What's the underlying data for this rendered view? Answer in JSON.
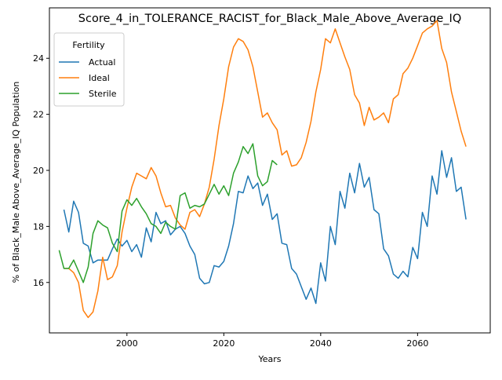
{
  "chart_data": {
    "type": "line",
    "title": "Score_4_in_TOLERANCE_RACIST_for_Black_Male_Above_Average_IQ",
    "xlabel": "Years",
    "ylabel": "% of Black_Male Above_Average_IQ Population",
    "xlim": [
      1984,
      2075
    ],
    "ylim": [
      14.2,
      25.8
    ],
    "xticks": [
      2000,
      2020,
      2040,
      2060
    ],
    "yticks": [
      16,
      18,
      20,
      22,
      24
    ],
    "grid": false,
    "legend": {
      "title": "Fertility",
      "placement": "top-left"
    },
    "series": [
      {
        "name": "Actual",
        "color": "#1f77b4",
        "x": [
          1987,
          1988,
          1989,
          1990,
          1991,
          1992,
          1993,
          1994,
          1995,
          1996,
          1997,
          1998,
          1999,
          2000,
          2001,
          2002,
          2003,
          2004,
          2005,
          2006,
          2007,
          2008,
          2009,
          2010,
          2011,
          2012,
          2013,
          2014,
          2015,
          2016,
          2017,
          2018,
          2019,
          2020,
          2021,
          2022,
          2023,
          2024,
          2025,
          2026,
          2027,
          2028,
          2029,
          2030,
          2031,
          2032,
          2033,
          2034,
          2035,
          2036,
          2037,
          2038,
          2039,
          2040,
          2041,
          2042,
          2043,
          2044,
          2045,
          2046,
          2047,
          2048,
          2049,
          2050,
          2051,
          2052,
          2053,
          2054,
          2055,
          2056,
          2057,
          2058,
          2059,
          2060,
          2061,
          2062,
          2063,
          2064,
          2065,
          2066,
          2067,
          2068,
          2069,
          2070
        ],
        "values": [
          18.6,
          17.8,
          18.9,
          18.5,
          17.4,
          17.3,
          16.7,
          16.8,
          16.8,
          16.8,
          17.2,
          17.55,
          17.3,
          17.5,
          17.1,
          17.35,
          16.9,
          17.95,
          17.45,
          18.5,
          18.1,
          18.2,
          17.7,
          17.9,
          18.0,
          17.75,
          17.3,
          17.0,
          16.15,
          15.95,
          16.0,
          16.6,
          16.55,
          16.75,
          17.3,
          18.1,
          19.25,
          19.2,
          19.8,
          19.35,
          19.55,
          18.75,
          19.15,
          18.25,
          18.45,
          17.4,
          17.35,
          16.5,
          16.3,
          15.85,
          15.4,
          15.8,
          15.25,
          16.7,
          16.05,
          18.0,
          17.35,
          19.25,
          18.65,
          19.9,
          19.2,
          20.25,
          19.4,
          19.75,
          18.6,
          18.45,
          17.2,
          16.95,
          16.3,
          16.15,
          16.4,
          16.2,
          17.25,
          16.85,
          18.5,
          18.0,
          19.8,
          19.15,
          20.7,
          19.75,
          20.45,
          19.25,
          19.4,
          18.25
        ]
      },
      {
        "name": "Ideal",
        "color": "#ff7f0e",
        "x": [
          1987,
          1988,
          1989,
          1990,
          1991,
          1992,
          1993,
          1994,
          1995,
          1996,
          1997,
          1998,
          1999,
          2000,
          2001,
          2002,
          2003,
          2004,
          2005,
          2006,
          2007,
          2008,
          2009,
          2010,
          2011,
          2012,
          2013,
          2014,
          2015,
          2016,
          2017,
          2018,
          2019,
          2020,
          2021,
          2022,
          2023,
          2024,
          2025,
          2026,
          2027,
          2028,
          2029,
          2030,
          2031,
          2032,
          2033,
          2034,
          2035,
          2036,
          2037,
          2038,
          2039,
          2040,
          2041,
          2042,
          2043,
          2044,
          2045,
          2046,
          2047,
          2048,
          2049,
          2050,
          2051,
          2052,
          2053,
          2054,
          2055,
          2056,
          2057,
          2058,
          2059,
          2060,
          2061,
          2062,
          2063,
          2064,
          2065,
          2066,
          2067,
          2068,
          2069,
          2070
        ],
        "values": [
          16.5,
          16.5,
          16.35,
          16.0,
          15.0,
          14.75,
          14.95,
          15.7,
          16.9,
          16.1,
          16.2,
          16.6,
          17.8,
          18.65,
          19.4,
          19.9,
          19.8,
          19.7,
          20.1,
          19.8,
          19.2,
          18.7,
          18.75,
          18.3,
          18.05,
          17.9,
          18.5,
          18.6,
          18.35,
          18.8,
          19.4,
          20.4,
          21.6,
          22.55,
          23.7,
          24.4,
          24.7,
          24.6,
          24.3,
          23.7,
          22.8,
          21.9,
          22.05,
          21.7,
          21.45,
          20.55,
          20.7,
          20.15,
          20.2,
          20.45,
          21.0,
          21.75,
          22.8,
          23.6,
          24.7,
          24.55,
          25.05,
          24.55,
          24.05,
          23.6,
          22.7,
          22.4,
          21.6,
          22.25,
          21.8,
          21.9,
          22.05,
          21.7,
          22.55,
          22.7,
          23.45,
          23.65,
          24.0,
          24.45,
          24.9,
          25.05,
          25.15,
          25.35,
          24.35,
          23.85,
          22.8,
          22.1,
          21.4,
          20.85
        ]
      },
      {
        "name": "Sterile",
        "color": "#2ca02c",
        "x": [
          1986,
          1987,
          1988,
          1989,
          1990,
          1991,
          1992,
          1993,
          1994,
          1995,
          1996,
          1997,
          1998,
          1999,
          2000,
          2001,
          2002,
          2003,
          2004,
          2005,
          2006,
          2007,
          2008,
          2009,
          2010,
          2011,
          2012,
          2013,
          2014,
          2015,
          2016,
          2017,
          2018,
          2019,
          2020,
          2021,
          2022,
          2023,
          2024,
          2025,
          2026,
          2027,
          2028,
          2029,
          2030,
          2031
        ],
        "values": [
          17.15,
          16.5,
          16.5,
          16.8,
          16.4,
          16.0,
          16.55,
          17.75,
          18.2,
          18.05,
          17.95,
          17.4,
          17.1,
          18.55,
          18.95,
          18.75,
          19.0,
          18.7,
          18.45,
          18.1,
          18.0,
          17.75,
          18.15,
          18.0,
          17.9,
          19.1,
          19.2,
          18.65,
          18.75,
          18.7,
          18.8,
          19.15,
          19.5,
          19.15,
          19.45,
          19.1,
          19.9,
          20.3,
          20.85,
          20.6,
          20.95,
          19.8,
          19.45,
          19.6,
          20.35,
          20.2
        ]
      }
    ]
  }
}
